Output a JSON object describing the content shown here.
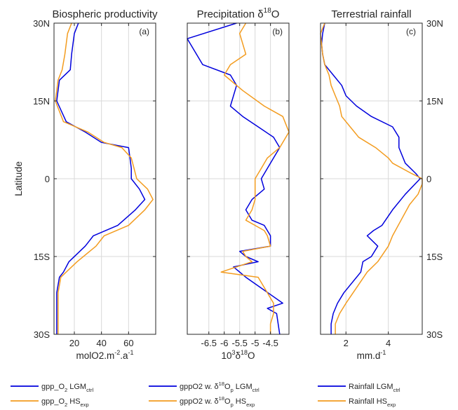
{
  "figure": {
    "ylabel": "Latitude",
    "ylim": [
      -30,
      30
    ],
    "yticks": [
      {
        "value": 30,
        "label": "30N"
      },
      {
        "value": 15,
        "label": "15N"
      },
      {
        "value": 0,
        "label": "0"
      },
      {
        "value": -15,
        "label": "15S"
      },
      {
        "value": -30,
        "label": "30S"
      }
    ],
    "colors": {
      "blue": "#0000dd",
      "orange": "#f39c1f",
      "grid": "#d9d9d9",
      "axis": "#262626"
    }
  },
  "chart_data": [
    {
      "type": "line",
      "panel_label": "(a)",
      "title": "Biospheric productivity",
      "xlabel_parts": {
        "pre": "molO2.m",
        "sup1": "-2",
        "mid": ".a",
        "sup2": "-1"
      },
      "xlim": [
        5,
        80
      ],
      "xticks": [
        20,
        40,
        60
      ],
      "tick_side": "left",
      "series": [
        {
          "color": "blue",
          "x": [
            23,
            20,
            18,
            17,
            9,
            8,
            7,
            14,
            28,
            40,
            60,
            61,
            62,
            62,
            68,
            72,
            65,
            52,
            34,
            28,
            16,
            12,
            9,
            7,
            7,
            7,
            7,
            7
          ],
          "y": [
            30,
            28,
            24,
            21,
            19,
            17,
            15,
            11,
            9,
            7,
            6,
            4,
            2,
            0,
            -2,
            -4,
            -6,
            -9,
            -11,
            -13,
            -16,
            -18,
            -19,
            -22,
            -24,
            -26,
            -28,
            -30
          ]
        },
        {
          "color": "orange",
          "x": [
            18,
            15,
            13,
            11,
            8,
            7,
            6,
            12,
            30,
            42,
            55,
            62,
            64,
            66,
            74,
            78,
            72,
            60,
            42,
            36,
            22,
            14,
            10,
            8,
            8,
            8,
            8,
            8
          ],
          "y": [
            30,
            28,
            24,
            21,
            19,
            17,
            15,
            11,
            9,
            7,
            6,
            4,
            2,
            0,
            -2,
            -4,
            -6,
            -9,
            -11,
            -13,
            -16,
            -18,
            -19,
            -22,
            -24,
            -26,
            -28,
            -30
          ]
        }
      ]
    },
    {
      "type": "line",
      "panel_label": "(b)",
      "title_parts": {
        "pre": "Precipitation ",
        "sym": "δ",
        "sup": "18",
        "post": "O"
      },
      "xlabel_parts": {
        "pre": "10",
        "sup1": "3",
        "mid": "δ",
        "sup2": "18",
        "post": "O"
      },
      "xlim": [
        -7.2,
        -3.9
      ],
      "xticks": [
        -6.5,
        -6,
        -5.5,
        -5,
        -4.5
      ],
      "xtick_labels": [
        "-6.5",
        "-6",
        "-5.5",
        "-5",
        "-4.5"
      ],
      "tick_side": "left",
      "series": [
        {
          "color": "blue",
          "x": [
            -5.6,
            -7.2,
            -6.7,
            -5.8,
            -5.6,
            -5.8,
            -5.4,
            -4.9,
            -4.4,
            -4.2,
            -4.4,
            -4.6,
            -4.8,
            -4.7,
            -5.1,
            -5.3,
            -5.1,
            -4.7,
            -4.6,
            -4.5,
            -4.5,
            -5.5,
            -5.3,
            -4.9,
            -5.7,
            -5.3,
            -4.1,
            -4.6,
            -4.3,
            -4.2
          ],
          "y": [
            30,
            27,
            22,
            20,
            18,
            14,
            12,
            10,
            8,
            6,
            4,
            2,
            0,
            -2,
            -4,
            -6,
            -8,
            -9,
            -10,
            -11,
            -13,
            -14,
            -15,
            -16,
            -17,
            -19,
            -24,
            -25,
            -26,
            -30
          ]
        },
        {
          "color": "orange",
          "x": [
            -5.3,
            -5.5,
            -5.3,
            -5.8,
            -6.0,
            -5.4,
            -4.7,
            -4.1,
            -3.9,
            -4.2,
            -4.6,
            -4.8,
            -5.0,
            -5.0,
            -5.0,
            -5.1,
            -5.3,
            -5.0,
            -4.7,
            -4.6,
            -4.5,
            -5.4,
            -5.3,
            -5.1,
            -6.1,
            -4.9,
            -4.4,
            -4.4,
            -4.5,
            -4.5
          ],
          "y": [
            30,
            28,
            24,
            22,
            20,
            17,
            14,
            12,
            9,
            6,
            4,
            2,
            0,
            -2,
            -4,
            -6,
            -8,
            -9,
            -10,
            -11,
            -13,
            -14,
            -15,
            -16,
            -18,
            -19,
            -24,
            -26,
            -28,
            -30
          ]
        }
      ]
    },
    {
      "type": "line",
      "panel_label": "(c)",
      "title": "Terrestrial rainfall",
      "xlabel_parts": {
        "pre": "mm.d",
        "sup1": "-1",
        "mid": "",
        "sup2": ""
      },
      "xlim": [
        0.8,
        5.6
      ],
      "xticks": [
        2,
        4
      ],
      "tick_side": "right",
      "series": [
        {
          "color": "blue",
          "x": [
            1.0,
            0.9,
            0.85,
            0.9,
            1.0,
            1.4,
            1.8,
            2.0,
            2.5,
            3.2,
            4.2,
            4.5,
            4.5,
            4.8,
            5.3,
            5.5,
            4.8,
            4.2,
            3.7,
            3.3,
            3.0,
            3.5,
            3.2,
            2.8,
            2.7,
            1.9,
            1.6,
            1.4,
            1.3,
            1.3
          ],
          "y": [
            30,
            28,
            26,
            24,
            22,
            20,
            18,
            16,
            14,
            12,
            10,
            8,
            6,
            3,
            1,
            0,
            -3,
            -6,
            -9,
            -10,
            -11,
            -13,
            -15,
            -16,
            -18,
            -22,
            -24,
            -26,
            -28,
            -30
          ]
        },
        {
          "color": "orange",
          "x": [
            1.0,
            0.8,
            0.85,
            0.9,
            1.0,
            1.2,
            1.3,
            1.5,
            1.7,
            1.8,
            2.2,
            2.6,
            3.4,
            4.0,
            4.2,
            5.1,
            5.6,
            5.6,
            5.4,
            5.0,
            4.6,
            4.2,
            4.0,
            3.5,
            3.0,
            2.5,
            2.0,
            1.7,
            1.5,
            1.5
          ],
          "y": [
            30,
            28,
            26,
            24,
            22,
            20,
            18,
            16,
            14,
            12,
            10,
            8,
            6,
            4,
            3,
            1,
            0,
            -1,
            -3,
            -5,
            -8,
            -11,
            -13,
            -16,
            -18,
            -21,
            -24,
            -26,
            -28,
            -30
          ]
        }
      ]
    }
  ],
  "legend": [
    {
      "color": "blue",
      "parts": [
        "gpp_O",
        {
          "sub": "2"
        },
        " LGM",
        {
          "sub": "ctrl"
        }
      ]
    },
    {
      "color": "orange",
      "parts": [
        "gpp_O",
        {
          "sub": "2"
        },
        " HS",
        {
          "sub": "exp"
        }
      ]
    },
    {
      "color": "blue",
      "parts": [
        "gppO2 w. δ",
        {
          "sup": "18"
        },
        "O",
        {
          "sub": "p"
        },
        " LGM",
        {
          "sub": "ctrl"
        }
      ]
    },
    {
      "color": "orange",
      "parts": [
        "gppO2 w. δ",
        {
          "sup": "18"
        },
        "O",
        {
          "sub": "p"
        },
        " HS",
        {
          "sub": "exp"
        }
      ]
    },
    {
      "color": "blue",
      "parts": [
        "Rainfall LGM",
        {
          "sub": "ctrl"
        }
      ]
    },
    {
      "color": "orange",
      "parts": [
        "Rainfall HS",
        {
          "sub": "exp"
        }
      ]
    }
  ]
}
